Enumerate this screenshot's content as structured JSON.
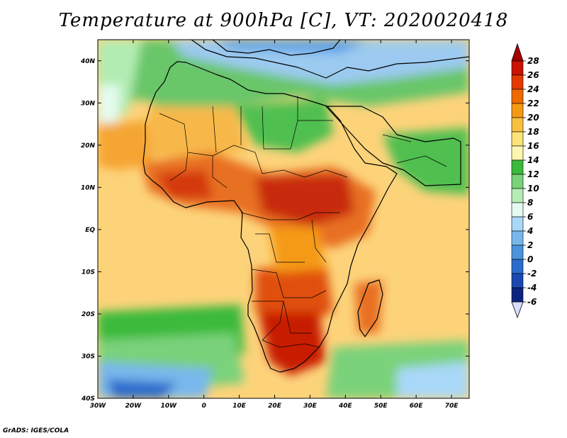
{
  "title": "Temperature at 900hPa [C], VT: 2020020418",
  "credit": "GrADS: IGES/COLA",
  "map": {
    "lon_range": [
      -30,
      75
    ],
    "lat_range": [
      -40,
      45
    ],
    "lat_ticks": [
      {
        "value": 40,
        "label": "40N"
      },
      {
        "value": 30,
        "label": "30N"
      },
      {
        "value": 20,
        "label": "20N"
      },
      {
        "value": 10,
        "label": "10N"
      },
      {
        "value": 0,
        "label": "EQ"
      },
      {
        "value": -10,
        "label": "10S"
      },
      {
        "value": -20,
        "label": "20S"
      },
      {
        "value": -30,
        "label": "30S"
      },
      {
        "value": -40,
        "label": "40S"
      }
    ],
    "lon_ticks": [
      {
        "value": -30,
        "label": "30W"
      },
      {
        "value": -20,
        "label": "20W"
      },
      {
        "value": -10,
        "label": "10W"
      },
      {
        "value": 0,
        "label": "0"
      },
      {
        "value": 10,
        "label": "10E"
      },
      {
        "value": 20,
        "label": "20E"
      },
      {
        "value": 30,
        "label": "30E"
      },
      {
        "value": 40,
        "label": "40E"
      },
      {
        "value": 50,
        "label": "50E"
      },
      {
        "value": 60,
        "label": "60E"
      },
      {
        "value": 70,
        "label": "70E"
      }
    ]
  },
  "colorbar": {
    "labels": [
      "28",
      "26",
      "24",
      "22",
      "20",
      "18",
      "16",
      "14",
      "12",
      "10",
      "8",
      "6",
      "4",
      "2",
      "0",
      "-2",
      "-4",
      "-6"
    ],
    "top_arrow_color": "#a50000",
    "bottom_arrow_color": "#d8dcff",
    "colors": [
      "#c81400",
      "#e43a00",
      "#f06a00",
      "#f59a14",
      "#f9c040",
      "#fce37a",
      "#fdf6b0",
      "#3aba3a",
      "#7ad27a",
      "#b6ecb6",
      "#e4fbf0",
      "#a9d8f8",
      "#78b8ec",
      "#4a94de",
      "#2c6ccc",
      "#1a48b0",
      "#0a2480"
    ]
  }
}
